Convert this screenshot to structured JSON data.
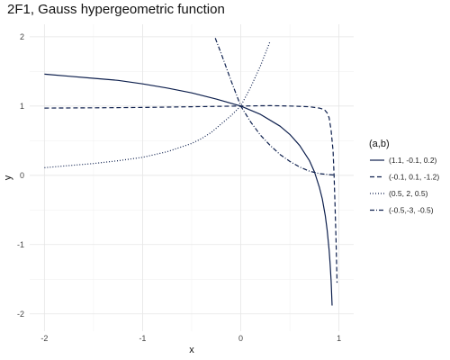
{
  "chart_data": {
    "type": "line",
    "title": "2F1, Gauss hypergeometric function",
    "xlabel": "x",
    "ylabel": "y",
    "xlim": [
      -2.15,
      1.15
    ],
    "ylim": [
      -2.25,
      2.18
    ],
    "xticks": [
      -2,
      -1,
      0,
      1
    ],
    "yticks": [
      -2,
      -1,
      0,
      1,
      2
    ],
    "grid": true,
    "legend": {
      "title": "(a,b)",
      "placement": "right",
      "entries": [
        "(1.1, -0.1, 0.2)",
        "(-0.1, 0.1, -1.2)",
        "(0.5, 2, 0.5)",
        "(-0.5,-3, -0.5)"
      ]
    },
    "series": [
      {
        "name": "(1.1, -0.1, 0.2)",
        "style": "solid",
        "color": "#0d1f4d",
        "x": [
          -2,
          -1.75,
          -1.5,
          -1.25,
          -1,
          -0.75,
          -0.5,
          -0.25,
          0,
          0.2,
          0.4,
          0.5,
          0.6,
          0.7,
          0.75,
          0.8,
          0.83,
          0.86,
          0.88,
          0.9,
          0.91,
          0.92,
          0.93
        ],
        "y": [
          1.46,
          1.43,
          1.4,
          1.37,
          1.32,
          1.26,
          1.19,
          1.1,
          1.0,
          0.88,
          0.71,
          0.59,
          0.43,
          0.21,
          0.05,
          -0.17,
          -0.34,
          -0.58,
          -0.79,
          -1.08,
          -1.28,
          -1.52,
          -1.88
        ]
      },
      {
        "name": "(-0.1, 0.1, -1.2)",
        "style": "dashed",
        "color": "#0d1f4d",
        "x": [
          -2,
          -1.5,
          -1,
          -0.5,
          0,
          0.3,
          0.5,
          0.7,
          0.8,
          0.85,
          0.88,
          0.9,
          0.92,
          0.94,
          0.95,
          0.96,
          0.97,
          0.98
        ],
        "y": [
          0.97,
          0.975,
          0.98,
          0.99,
          1.0,
          1.005,
          1.0,
          0.99,
          0.97,
          0.95,
          0.9,
          0.83,
          0.65,
          0.35,
          0.0,
          -0.45,
          -0.95,
          -1.55
        ]
      },
      {
        "name": "(0.5, 2, 0.5)",
        "style": "dotted",
        "color": "#0d1f4d",
        "x": [
          -2,
          -1.75,
          -1.5,
          -1.25,
          -1,
          -0.75,
          -0.5,
          -0.4,
          -0.3,
          -0.2,
          -0.1,
          0,
          0.1,
          0.2,
          0.3
        ],
        "y": [
          0.11,
          0.14,
          0.17,
          0.21,
          0.26,
          0.34,
          0.46,
          0.53,
          0.62,
          0.74,
          0.86,
          1.0,
          1.27,
          1.58,
          1.94
        ]
      },
      {
        "name": "(-0.5,-3, -0.5)",
        "style": "dotdash",
        "color": "#0d1f4d",
        "x": [
          -0.26,
          -0.2,
          -0.1,
          0,
          0.1,
          0.2,
          0.3,
          0.4,
          0.5,
          0.6,
          0.7,
          0.8,
          0.9,
          0.95
        ],
        "y": [
          1.98,
          1.76,
          1.37,
          1.0,
          0.77,
          0.58,
          0.43,
          0.3,
          0.2,
          0.12,
          0.06,
          0.025,
          0.01,
          0.005
        ]
      }
    ]
  }
}
